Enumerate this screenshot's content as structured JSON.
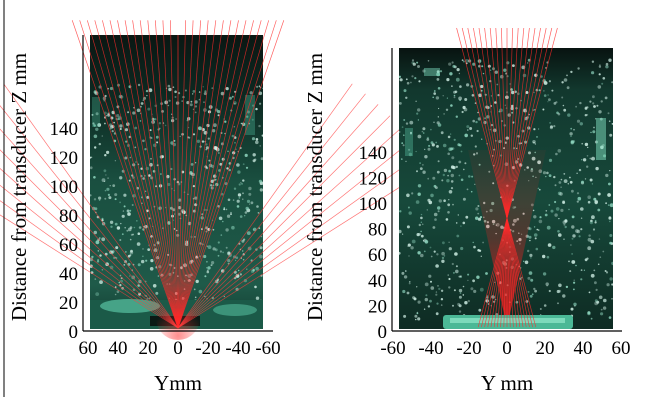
{
  "colors": {
    "background": "#ffffff",
    "water_dark": "#07130f",
    "water_mid": "#134034",
    "water_light": "#2f7f68",
    "beam": "#ff2a2a",
    "axis": "#000000"
  },
  "panels": [
    {
      "id": "left",
      "ylabel": "Distance from transducer Z mm",
      "xlabel": "Ymm",
      "xticks": [
        "60",
        "40",
        "20",
        "0",
        "-20",
        "-40",
        "-60"
      ],
      "yticks": [
        "0",
        "20",
        "40",
        "60",
        "80",
        "100",
        "120",
        "140"
      ],
      "xlim": [
        60,
        -60
      ],
      "ylim": [
        0,
        150
      ],
      "beam": "wide fan of rays from transducer at Y=0, Z=0"
    },
    {
      "id": "right",
      "ylabel": "Distance from transducer Z mm",
      "xlabel": "Y mm",
      "xticks": [
        "-60",
        "-40",
        "-20",
        "0",
        "20",
        "40",
        "60"
      ],
      "yticks": [
        "0",
        "20",
        "40",
        "60",
        "80",
        "100",
        "120",
        "140"
      ],
      "xlim": [
        -60,
        60
      ],
      "ylim": [
        0,
        150
      ],
      "beam": "narrow cone of rays focused at Y=0, Z=0"
    }
  ]
}
